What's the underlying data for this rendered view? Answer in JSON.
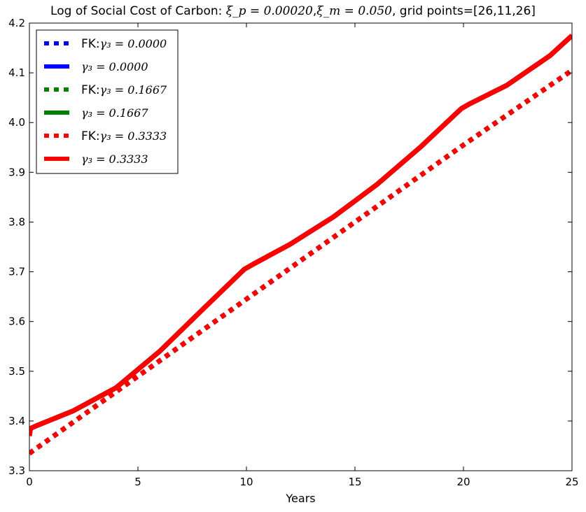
{
  "chart_data": {
    "type": "line",
    "title_prefix": "Log of Social Cost of Carbon: ",
    "title_xi_p": "ξ_p = 0.00020",
    "title_sep": ",",
    "title_xi_m": "ξ_m = 0.050",
    "title_suffix": ", grid points=[26,11,26]",
    "xlabel": "Years",
    "ylabel": "",
    "xlim": [
      0,
      25
    ],
    "ylim": [
      3.3,
      4.2
    ],
    "xticks": [
      0,
      5,
      10,
      15,
      20,
      25
    ],
    "yticks": [
      3.3,
      3.4,
      3.5,
      3.6,
      3.7,
      3.8,
      3.9,
      4.0,
      4.1,
      4.2
    ],
    "grid": false,
    "legend_position": "top-left",
    "series": [
      {
        "name": "FK:γ₃ = 0.0000",
        "legend_prefix": "FK:",
        "legend_math": "γ₃ = 0.0000",
        "color": "#0000ff",
        "style": "dotted",
        "x": [
          0,
          5,
          10,
          15,
          20,
          25
        ],
        "y": [
          3.335,
          3.49,
          3.645,
          3.8,
          3.955,
          4.105
        ]
      },
      {
        "name": "γ₃ = 0.0000",
        "legend_prefix": "",
        "legend_math": "γ₃ = 0.0000",
        "color": "#0000ff",
        "style": "solid",
        "x": [
          0,
          0.05,
          0.3,
          2,
          4,
          6,
          8,
          9.9,
          10.3,
          12,
          14,
          16,
          18,
          19.9,
          20.3,
          22,
          24,
          25
        ],
        "y": [
          3.37,
          3.385,
          3.39,
          3.42,
          3.467,
          3.54,
          3.625,
          3.705,
          3.715,
          3.755,
          3.81,
          3.875,
          3.95,
          4.028,
          4.038,
          4.075,
          4.135,
          4.175
        ]
      },
      {
        "name": "FK:γ₃ = 0.1667",
        "legend_prefix": "FK:",
        "legend_math": "γ₃ = 0.1667",
        "color": "#008000",
        "style": "dotted",
        "x": [
          0,
          5,
          10,
          15,
          20,
          25
        ],
        "y": [
          3.335,
          3.49,
          3.645,
          3.8,
          3.955,
          4.105
        ]
      },
      {
        "name": "γ₃ = 0.1667",
        "legend_prefix": "",
        "legend_math": "γ₃ = 0.1667",
        "color": "#008000",
        "style": "solid",
        "x": [
          0,
          0.05,
          0.3,
          2,
          4,
          6,
          8,
          9.9,
          10.3,
          12,
          14,
          16,
          18,
          19.9,
          20.3,
          22,
          24,
          25
        ],
        "y": [
          3.37,
          3.385,
          3.39,
          3.42,
          3.467,
          3.54,
          3.625,
          3.705,
          3.715,
          3.755,
          3.81,
          3.875,
          3.95,
          4.028,
          4.038,
          4.075,
          4.135,
          4.175
        ]
      },
      {
        "name": "FK:γ₃ = 0.3333",
        "legend_prefix": "FK:",
        "legend_math": "γ₃ = 0.3333",
        "color": "#ff0000",
        "style": "dotted",
        "x": [
          0,
          5,
          10,
          15,
          20,
          25
        ],
        "y": [
          3.335,
          3.49,
          3.645,
          3.8,
          3.955,
          4.105
        ]
      },
      {
        "name": "γ₃ = 0.3333",
        "legend_prefix": "",
        "legend_math": "γ₃ = 0.3333",
        "color": "#ff0000",
        "style": "solid",
        "x": [
          0,
          0.05,
          0.3,
          2,
          4,
          6,
          8,
          9.9,
          10.3,
          12,
          14,
          16,
          18,
          19.9,
          20.3,
          22,
          24,
          25
        ],
        "y": [
          3.37,
          3.385,
          3.39,
          3.42,
          3.467,
          3.54,
          3.625,
          3.705,
          3.715,
          3.755,
          3.81,
          3.875,
          3.95,
          4.028,
          4.038,
          4.075,
          4.135,
          4.175
        ]
      }
    ]
  }
}
